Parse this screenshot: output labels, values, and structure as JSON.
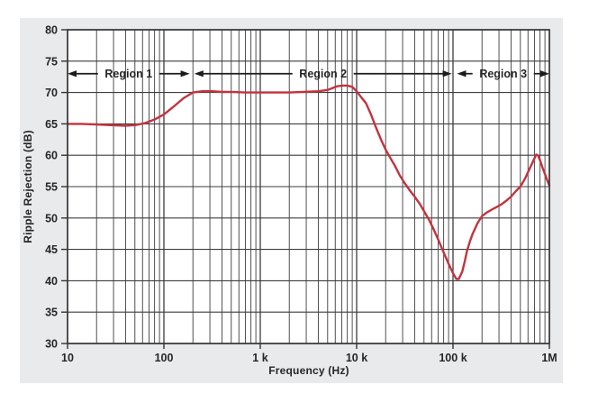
{
  "figure": {
    "background": "#ffffff",
    "panel_color": "#e9eaec",
    "plot_background": "#ffffff",
    "grid_color": "#3d3d3d",
    "frame_color": "#333333",
    "text_color": "#262626",
    "arrow_color": "#1c1c1c"
  },
  "chart_data": {
    "type": "line",
    "title": "",
    "xlabel": "Frequency (Hz)",
    "ylabel": "Ripple Rejection (dB)",
    "x_scale": "log",
    "xlim": [
      10,
      1000000
    ],
    "ylim": [
      30,
      80
    ],
    "y_ticks": [
      30,
      35,
      40,
      45,
      50,
      55,
      60,
      65,
      70,
      75,
      80
    ],
    "x_ticks": [
      {
        "value": 10,
        "label": "10"
      },
      {
        "value": 100,
        "label": "100"
      },
      {
        "value": 1000,
        "label": "1 k"
      },
      {
        "value": 10000,
        "label": "10 k"
      },
      {
        "value": 100000,
        "label": "100 k"
      },
      {
        "value": 1000000,
        "label": "1M"
      }
    ],
    "grid": "on (log minor verticals, 5 dB horizontals)",
    "legend": "none",
    "series": [
      {
        "name": "Ripple Rejection",
        "color": "#c2333f",
        "points": [
          [
            10,
            65.0
          ],
          [
            14,
            65.0
          ],
          [
            20,
            64.9
          ],
          [
            28,
            64.8
          ],
          [
            40,
            64.7
          ],
          [
            50,
            64.8
          ],
          [
            63,
            65.1
          ],
          [
            80,
            65.7
          ],
          [
            100,
            66.5
          ],
          [
            125,
            67.7
          ],
          [
            160,
            69.1
          ],
          [
            200,
            70.0
          ],
          [
            250,
            70.2
          ],
          [
            320,
            70.2
          ],
          [
            400,
            70.1
          ],
          [
            500,
            70.1
          ],
          [
            700,
            70.0
          ],
          [
            1000,
            70.0
          ],
          [
            1400,
            70.0
          ],
          [
            2000,
            70.0
          ],
          [
            2800,
            70.1
          ],
          [
            4000,
            70.2
          ],
          [
            5000,
            70.4
          ],
          [
            5600,
            70.7
          ],
          [
            6300,
            71.0
          ],
          [
            7100,
            71.1
          ],
          [
            8000,
            71.1
          ],
          [
            9000,
            70.9
          ],
          [
            10000,
            70.2
          ],
          [
            11200,
            69.2
          ],
          [
            12500,
            68.3
          ],
          [
            14000,
            66.6
          ],
          [
            16000,
            64.3
          ],
          [
            18000,
            62.4
          ],
          [
            20000,
            60.9
          ],
          [
            22500,
            59.5
          ],
          [
            25000,
            58.3
          ],
          [
            28000,
            56.8
          ],
          [
            32000,
            55.4
          ],
          [
            36000,
            54.3
          ],
          [
            40000,
            53.4
          ],
          [
            45000,
            52.3
          ],
          [
            50000,
            51.1
          ],
          [
            56000,
            49.8
          ],
          [
            63000,
            48.2
          ],
          [
            71000,
            46.4
          ],
          [
            80000,
            44.5
          ],
          [
            90000,
            42.7
          ],
          [
            100000,
            41.2
          ],
          [
            108000,
            40.3
          ],
          [
            115000,
            40.3
          ],
          [
            125000,
            41.5
          ],
          [
            132000,
            43.0
          ],
          [
            140000,
            44.8
          ],
          [
            150000,
            46.3
          ],
          [
            160000,
            47.5
          ],
          [
            180000,
            49.2
          ],
          [
            200000,
            50.3
          ],
          [
            225000,
            50.9
          ],
          [
            250000,
            51.3
          ],
          [
            280000,
            51.7
          ],
          [
            320000,
            52.2
          ],
          [
            360000,
            52.8
          ],
          [
            400000,
            53.4
          ],
          [
            450000,
            54.3
          ],
          [
            500000,
            55.0
          ],
          [
            560000,
            56.3
          ],
          [
            630000,
            58.0
          ],
          [
            700000,
            59.5
          ],
          [
            730000,
            60.1
          ],
          [
            760000,
            60.0
          ],
          [
            800000,
            59.2
          ],
          [
            850000,
            58.0
          ],
          [
            900000,
            57.0
          ],
          [
            950000,
            56.0
          ],
          [
            1000000,
            55.2
          ]
        ]
      }
    ],
    "annotations": [
      {
        "label": "Region 1",
        "x_from": 10,
        "x_to": 185,
        "y_db": 73
      },
      {
        "label": "Region 2",
        "x_from": 207,
        "x_to": 97000,
        "y_db": 73
      },
      {
        "label": "Region 3",
        "x_from": 110000,
        "x_to": 1000000,
        "y_db": 73
      }
    ]
  }
}
